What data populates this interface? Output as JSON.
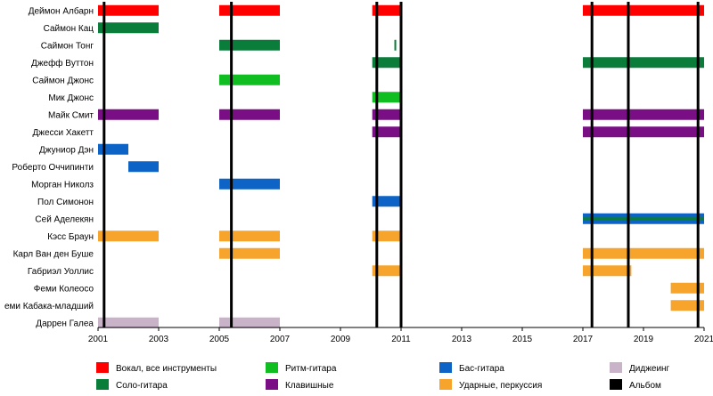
{
  "chart_data": {
    "type": "timeline",
    "x_range": [
      2001,
      2021
    ],
    "x_ticks": [
      "2001",
      "2003",
      "2005",
      "2007",
      "2009",
      "2011",
      "2013",
      "2015",
      "2017",
      "2019",
      "2021"
    ],
    "x_tick_values": [
      2001,
      2003,
      2005,
      2007,
      2009,
      2011,
      2013,
      2015,
      2017,
      2019,
      2021
    ],
    "members": [
      {
        "name": "Деймон Албарн",
        "periods": [
          {
            "role": "vocal",
            "start": 2001,
            "end": 2003
          },
          {
            "role": "vocal",
            "start": 2005,
            "end": 2007
          },
          {
            "role": "vocal",
            "start": 2010.05,
            "end": 2011
          },
          {
            "role": "vocal",
            "start": 2017,
            "end": 2021
          }
        ]
      },
      {
        "name": "Саймон Кац",
        "periods": [
          {
            "role": "lead",
            "start": 2001,
            "end": 2003
          }
        ]
      },
      {
        "name": "Саймон Тонг",
        "periods": [
          {
            "role": "lead",
            "start": 2005,
            "end": 2007
          },
          {
            "role": "lead",
            "start": 2010.78,
            "end": 2010.84
          }
        ]
      },
      {
        "name": "Джефф Вуттон",
        "periods": [
          {
            "role": "lead",
            "start": 2010.05,
            "end": 2011
          },
          {
            "role": "lead",
            "start": 2017,
            "end": 2021
          }
        ]
      },
      {
        "name": "Саймон Джонс",
        "periods": [
          {
            "role": "rhythm",
            "start": 2005,
            "end": 2007
          }
        ]
      },
      {
        "name": "Мик Джонс",
        "periods": [
          {
            "role": "rhythm",
            "start": 2010.05,
            "end": 2011
          }
        ]
      },
      {
        "name": "Майк Смит",
        "periods": [
          {
            "role": "keys",
            "start": 2001,
            "end": 2003
          },
          {
            "role": "keys",
            "start": 2005,
            "end": 2007
          },
          {
            "role": "keys",
            "start": 2010.05,
            "end": 2011
          },
          {
            "role": "keys",
            "start": 2017,
            "end": 2021
          }
        ]
      },
      {
        "name": "Джесси Хакетт",
        "periods": [
          {
            "role": "keys",
            "start": 2010.05,
            "end": 2011
          },
          {
            "role": "keys",
            "start": 2017,
            "end": 2021
          }
        ]
      },
      {
        "name": "Джуниор Дэн",
        "periods": [
          {
            "role": "bass",
            "start": 2001,
            "end": 2002
          }
        ]
      },
      {
        "name": "Роберто Оччипинти",
        "periods": [
          {
            "role": "bass",
            "start": 2002,
            "end": 2003
          }
        ]
      },
      {
        "name": "Морган Николз",
        "periods": [
          {
            "role": "bass",
            "start": 2005,
            "end": 2007
          }
        ]
      },
      {
        "name": "Пол Симонон",
        "periods": [
          {
            "role": "bass",
            "start": 2010.05,
            "end": 2011
          }
        ]
      },
      {
        "name": "Сей Аделекян",
        "periods": [
          {
            "role": "bass",
            "start": 2017,
            "end": 2021
          },
          {
            "role": "lead",
            "start": 2017,
            "end": 2021,
            "thin": true
          }
        ]
      },
      {
        "name": "Кэсс Браун",
        "periods": [
          {
            "role": "drums",
            "start": 2001,
            "end": 2003
          },
          {
            "role": "drums",
            "start": 2005,
            "end": 2007
          },
          {
            "role": "drums",
            "start": 2010.05,
            "end": 2011
          }
        ]
      },
      {
        "name": "Карл Ван ден Буше",
        "periods": [
          {
            "role": "drums",
            "start": 2005,
            "end": 2007
          },
          {
            "role": "drums",
            "start": 2017,
            "end": 2021
          }
        ]
      },
      {
        "name": "Габриэл Уоллис",
        "periods": [
          {
            "role": "drums",
            "start": 2010.05,
            "end": 2011
          },
          {
            "role": "drums",
            "start": 2017,
            "end": 2018.6
          }
        ]
      },
      {
        "name": "Феми Колеосо",
        "periods": [
          {
            "role": "drums",
            "start": 2019.9,
            "end": 2021
          }
        ]
      },
      {
        "name": "еми Кабака-младший",
        "periods": [
          {
            "role": "drums",
            "start": 2019.9,
            "end": 2021
          }
        ]
      },
      {
        "name": "Даррен Галеа",
        "periods": [
          {
            "role": "dj",
            "start": 2001,
            "end": 2003
          },
          {
            "role": "dj",
            "start": 2005,
            "end": 2007
          }
        ]
      }
    ],
    "albums": [
      2001.2,
      2005.4,
      2010.2,
      2011.0,
      2017.3,
      2018.5,
      2020.8
    ],
    "legend": [
      {
        "role": "vocal",
        "label": "Вокал, все инструменты",
        "color": "#ff0000"
      },
      {
        "role": "lead",
        "label": "Соло-гитара",
        "color": "#0b7d3b"
      },
      {
        "role": "rhythm",
        "label": "Ритм-гитара",
        "color": "#11be22"
      },
      {
        "role": "keys",
        "label": "Клавишные",
        "color": "#7a0f85"
      },
      {
        "role": "bass",
        "label": "Бас-гитара",
        "color": "#0e63c7"
      },
      {
        "role": "drums",
        "label": "Ударные, перкуссия",
        "color": "#f7a42c"
      },
      {
        "role": "dj",
        "label": "Диджеинг",
        "color": "#c9b3c9"
      },
      {
        "role": "album",
        "label": "Альбом",
        "color": "#000000"
      }
    ]
  }
}
